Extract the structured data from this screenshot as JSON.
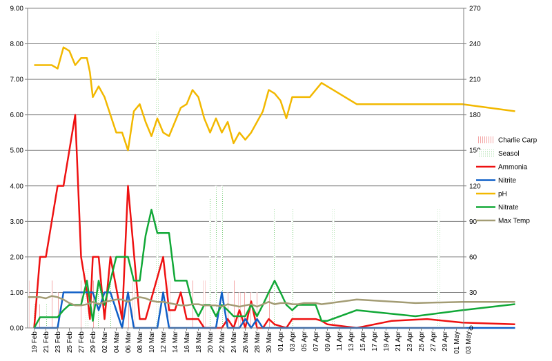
{
  "chart_data": {
    "type": "line",
    "title": "",
    "xlabel": "",
    "ylabel": "",
    "y2label": "",
    "ylim": [
      0,
      9
    ],
    "y_ticks": [
      "0.00",
      "1.00",
      "2.00",
      "3.00",
      "4.00",
      "5.00",
      "6.00",
      "7.00",
      "8.00",
      "9.00"
    ],
    "y2lim": [
      0,
      270
    ],
    "y2_ticks": [
      "0",
      "30",
      "60",
      "90",
      "120",
      "150",
      "180",
      "210",
      "240",
      "270"
    ],
    "grid": "horizontal",
    "legend_position": "right",
    "x_start": "2013-02-18",
    "x_tick_labels": [
      "19 Feb",
      "21 Feb",
      "23 Feb",
      "25 Feb",
      "27 Feb",
      "29 Feb",
      "02 Mar",
      "04 Mar",
      "06 Mar",
      "08 Mar",
      "10 Mar",
      "12 Mar",
      "14 Mar",
      "16 Mar",
      "18 Mar",
      "20 Mar",
      "22 Mar",
      "24 Mar",
      "26 Mar",
      "28 Mar",
      "30 Mar",
      "01 Apr",
      "03 Apr",
      "05 Apr",
      "07 Apr",
      "09 Apr",
      "11 Apr",
      "13 Apr",
      "15 Apr",
      "17 Apr",
      "19 Apr",
      "21 Apr",
      "23 Apr",
      "25 Apr",
      "27 Apr",
      "29 Apr",
      "01 May",
      "03 May"
    ],
    "bar_series": [
      {
        "name": "Charlie Carp",
        "color": "#f4a6a6",
        "pattern": "hatch",
        "axis": "right",
        "points": [
          [
            0,
            40
          ],
          [
            2,
            20
          ],
          [
            4,
            40
          ],
          [
            5,
            30
          ],
          [
            9,
            40
          ],
          [
            10,
            20
          ],
          [
            11,
            40
          ],
          [
            12,
            30
          ],
          [
            14,
            40
          ],
          [
            17,
            30
          ],
          [
            18,
            40
          ],
          [
            22,
            40
          ],
          [
            24,
            40
          ],
          [
            28,
            40
          ],
          [
            30,
            40
          ],
          [
            34,
            30
          ],
          [
            35,
            40
          ],
          [
            36,
            30
          ],
          [
            37,
            30
          ],
          [
            38,
            30
          ],
          [
            39,
            30
          ],
          [
            41,
            30
          ],
          [
            42,
            20
          ]
        ]
      },
      {
        "name": "Seasol",
        "color": "#7fcf7f",
        "pattern": "dots",
        "axis": "right",
        "points": [
          [
            1,
            20
          ],
          [
            3,
            20
          ],
          [
            10,
            50
          ],
          [
            12,
            40
          ],
          [
            14,
            40
          ],
          [
            22,
            250
          ],
          [
            31,
            110
          ],
          [
            32,
            120
          ],
          [
            33,
            120
          ],
          [
            42,
            100
          ],
          [
            45,
            100
          ],
          [
            52,
            100
          ],
          [
            70,
            100
          ],
          [
            100,
            100
          ],
          [
            103,
            100
          ]
        ]
      }
    ],
    "series": [
      {
        "name": "Ammonia",
        "color": "#ee1111",
        "axis": "left",
        "points": [
          [
            1,
            0
          ],
          [
            2,
            2
          ],
          [
            3,
            2
          ],
          [
            5,
            4
          ],
          [
            6,
            4
          ],
          [
            8,
            6
          ],
          [
            9,
            2
          ],
          [
            10,
            1
          ],
          [
            10.5,
            0.25
          ],
          [
            11,
            2
          ],
          [
            12,
            2
          ],
          [
            13,
            0.25
          ],
          [
            14,
            2
          ],
          [
            16,
            0.25
          ],
          [
            17,
            4
          ],
          [
            19,
            0.25
          ],
          [
            20,
            0.25
          ],
          [
            23,
            2
          ],
          [
            24,
            0.5
          ],
          [
            25,
            0.5
          ],
          [
            26,
            1
          ],
          [
            27,
            0.25
          ],
          [
            28,
            0.25
          ],
          [
            29,
            0.25
          ],
          [
            30,
            0
          ],
          [
            31,
            0
          ],
          [
            32,
            0
          ],
          [
            33,
            0
          ],
          [
            34,
            0.25
          ],
          [
            35,
            0
          ],
          [
            36,
            0.5
          ],
          [
            37,
            0
          ],
          [
            38,
            0.75
          ],
          [
            39,
            0
          ],
          [
            40,
            0
          ],
          [
            41,
            0.25
          ],
          [
            42,
            0.1
          ],
          [
            43,
            0.05
          ],
          [
            44,
            0
          ],
          [
            45,
            0.25
          ],
          [
            46,
            0.25
          ],
          [
            47,
            0.25
          ],
          [
            48,
            0.25
          ],
          [
            49,
            0.25
          ],
          [
            50,
            0.2
          ],
          [
            51,
            0.1
          ],
          [
            56,
            0
          ],
          [
            62,
            0.2
          ],
          [
            68,
            0.25
          ],
          [
            74,
            0.15
          ],
          [
            83,
            0.1
          ]
        ]
      },
      {
        "name": "Nitrite",
        "color": "#1060c8",
        "axis": "left",
        "points": [
          [
            1,
            0
          ],
          [
            2,
            0
          ],
          [
            3,
            0
          ],
          [
            4,
            0
          ],
          [
            5,
            0
          ],
          [
            6,
            1
          ],
          [
            7,
            1
          ],
          [
            8,
            1
          ],
          [
            9,
            1
          ],
          [
            10,
            1
          ],
          [
            11,
            1
          ],
          [
            12,
            0.5
          ],
          [
            13,
            1
          ],
          [
            14,
            1
          ],
          [
            15,
            0.5
          ],
          [
            16,
            0
          ],
          [
            17,
            1
          ],
          [
            18,
            0
          ],
          [
            19,
            0
          ],
          [
            20,
            0
          ],
          [
            22,
            0
          ],
          [
            23,
            1
          ],
          [
            24,
            0
          ],
          [
            25,
            0
          ],
          [
            26,
            0
          ],
          [
            27,
            0
          ],
          [
            28,
            0
          ],
          [
            29,
            0
          ],
          [
            30,
            0
          ],
          [
            31,
            0
          ],
          [
            32,
            0
          ],
          [
            33,
            1
          ],
          [
            34,
            0
          ],
          [
            35,
            0
          ],
          [
            36,
            0
          ],
          [
            37,
            0.25
          ],
          [
            38,
            0
          ],
          [
            39,
            0.25
          ],
          [
            40,
            0
          ],
          [
            41,
            0
          ],
          [
            56,
            0
          ],
          [
            74,
            0
          ],
          [
            83,
            0
          ]
        ]
      },
      {
        "name": "pH",
        "color": "#f2b800",
        "axis": "left",
        "points": [
          [
            1,
            7.4
          ],
          [
            2,
            7.4
          ],
          [
            3,
            7.4
          ],
          [
            4,
            7.4
          ],
          [
            5,
            7.3
          ],
          [
            6,
            7.9
          ],
          [
            7,
            7.8
          ],
          [
            8,
            7.4
          ],
          [
            9,
            7.6
          ],
          [
            10,
            7.6
          ],
          [
            10.5,
            7.2
          ],
          [
            11,
            6.5
          ],
          [
            12,
            6.8
          ],
          [
            13,
            6.5
          ],
          [
            14,
            6.0
          ],
          [
            15,
            5.5
          ],
          [
            16,
            5.5
          ],
          [
            17,
            5.0
          ],
          [
            18,
            6.1
          ],
          [
            19,
            6.3
          ],
          [
            20,
            5.8
          ],
          [
            21,
            5.4
          ],
          [
            22,
            5.9
          ],
          [
            23,
            5.5
          ],
          [
            24,
            5.4
          ],
          [
            25,
            5.8
          ],
          [
            26,
            6.2
          ],
          [
            27,
            6.3
          ],
          [
            28,
            6.7
          ],
          [
            29,
            6.5
          ],
          [
            30,
            5.9
          ],
          [
            31,
            5.5
          ],
          [
            32,
            5.9
          ],
          [
            33,
            5.5
          ],
          [
            34,
            5.8
          ],
          [
            35,
            5.2
          ],
          [
            36,
            5.5
          ],
          [
            37,
            5.3
          ],
          [
            38,
            5.5
          ],
          [
            39,
            5.8
          ],
          [
            40,
            6.1
          ],
          [
            41,
            6.7
          ],
          [
            42,
            6.6
          ],
          [
            43,
            6.4
          ],
          [
            44,
            5.9
          ],
          [
            45,
            6.5
          ],
          [
            46,
            6.5
          ],
          [
            47,
            6.5
          ],
          [
            48,
            6.5
          ],
          [
            50,
            6.9
          ],
          [
            52,
            6.7
          ],
          [
            56,
            6.3
          ],
          [
            66,
            6.3
          ],
          [
            74,
            6.3
          ],
          [
            83,
            6.1
          ]
        ]
      },
      {
        "name": "Nitrate",
        "color": "#11a837",
        "axis": "left",
        "points": [
          [
            1,
            0
          ],
          [
            2,
            0.3
          ],
          [
            3,
            0.3
          ],
          [
            4,
            0.3
          ],
          [
            5,
            0.3
          ],
          [
            6,
            0.5
          ],
          [
            7,
            0.65
          ],
          [
            8,
            0.65
          ],
          [
            9,
            0.65
          ],
          [
            10,
            1.33
          ],
          [
            11,
            0.2
          ],
          [
            12,
            1.33
          ],
          [
            13,
            0.65
          ],
          [
            14,
            1.33
          ],
          [
            15,
            2
          ],
          [
            16,
            2
          ],
          [
            17,
            2
          ],
          [
            18,
            1.33
          ],
          [
            19,
            1.33
          ],
          [
            20,
            2.6
          ],
          [
            21,
            3.33
          ],
          [
            22,
            2.67
          ],
          [
            23,
            2.67
          ],
          [
            24,
            2.67
          ],
          [
            25,
            1.33
          ],
          [
            26,
            1.33
          ],
          [
            27,
            1.33
          ],
          [
            28,
            0.65
          ],
          [
            29,
            0.33
          ],
          [
            30,
            0.65
          ],
          [
            31,
            0.65
          ],
          [
            32,
            0.33
          ],
          [
            33,
            0.65
          ],
          [
            34,
            0.5
          ],
          [
            35,
            0.33
          ],
          [
            36,
            0.33
          ],
          [
            37,
            0.33
          ],
          [
            38,
            0.65
          ],
          [
            39,
            0.33
          ],
          [
            40,
            0.65
          ],
          [
            41,
            1
          ],
          [
            42,
            1.33
          ],
          [
            43,
            1
          ],
          [
            44,
            0.65
          ],
          [
            45,
            0.5
          ],
          [
            46,
            0.65
          ],
          [
            47,
            0.65
          ],
          [
            48,
            0.65
          ],
          [
            49,
            0.65
          ],
          [
            50,
            0.2
          ],
          [
            51,
            0.2
          ],
          [
            56,
            0.5
          ],
          [
            66,
            0.33
          ],
          [
            74,
            0.5
          ],
          [
            83,
            0.67
          ]
        ]
      },
      {
        "name": "Max Temp",
        "color": "#a39c74",
        "axis": "right",
        "points": [
          [
            0,
            26
          ],
          [
            2,
            26
          ],
          [
            3,
            25
          ],
          [
            4,
            27
          ],
          [
            5,
            26
          ],
          [
            6,
            24
          ],
          [
            7,
            21
          ],
          [
            8,
            19
          ],
          [
            9,
            19
          ],
          [
            10,
            20
          ],
          [
            11,
            22
          ],
          [
            12,
            20
          ],
          [
            13,
            22
          ],
          [
            14,
            23
          ],
          [
            15,
            24
          ],
          [
            16,
            24
          ],
          [
            17,
            22
          ],
          [
            18,
            25
          ],
          [
            19,
            26
          ],
          [
            20,
            25
          ],
          [
            21,
            23
          ],
          [
            22,
            22
          ],
          [
            23,
            22
          ],
          [
            24,
            21
          ],
          [
            25,
            20
          ],
          [
            26,
            19
          ],
          [
            27,
            19
          ],
          [
            28,
            20
          ],
          [
            29,
            20
          ],
          [
            30,
            19
          ],
          [
            31,
            19
          ],
          [
            32,
            19
          ],
          [
            33,
            18
          ],
          [
            34,
            20
          ],
          [
            35,
            19
          ],
          [
            36,
            18
          ],
          [
            37,
            19
          ],
          [
            38,
            20
          ],
          [
            39,
            18
          ],
          [
            40,
            20
          ],
          [
            41,
            22
          ],
          [
            42,
            20
          ],
          [
            43,
            21
          ],
          [
            44,
            21
          ],
          [
            45,
            20
          ],
          [
            46,
            20
          ],
          [
            47,
            21
          ],
          [
            48,
            21
          ],
          [
            49,
            21
          ],
          [
            50,
            20
          ],
          [
            56,
            24
          ],
          [
            66,
            21
          ],
          [
            74,
            22
          ],
          [
            83,
            22
          ]
        ]
      }
    ]
  }
}
